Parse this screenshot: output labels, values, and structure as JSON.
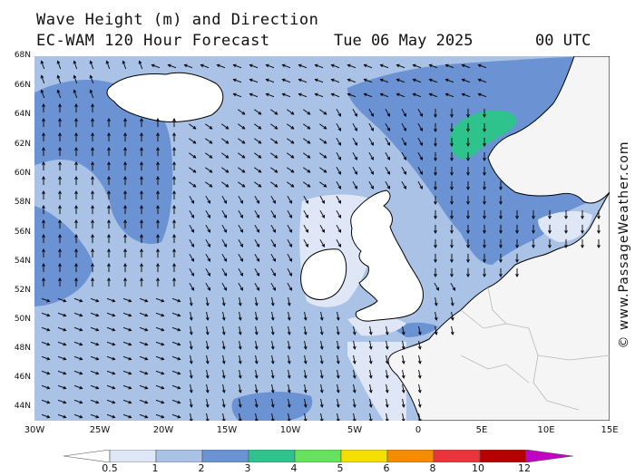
{
  "title": {
    "line1": "Wave Height (m) and Direction",
    "line2": "EC-WAM 120 Hour Forecast",
    "date": "Tue 06 May 2025",
    "time": "00 UTC"
  },
  "lat_labels": [
    "68N",
    "66N",
    "64N",
    "62N",
    "60N",
    "58N",
    "56N",
    "54N",
    "52N",
    "50N",
    "48N",
    "46N",
    "44N"
  ],
  "lon_labels": [
    "30W",
    "25W",
    "20W",
    "15W",
    "10W",
    "5W",
    "0",
    "5E",
    "10E",
    "15E"
  ],
  "watermark": "© www.PassageWeather.com",
  "colorbar": {
    "labels": [
      "0.5",
      "1",
      "2",
      "3",
      "4",
      "5",
      "6",
      "8",
      "10",
      "12"
    ],
    "colors": [
      "#ffffff",
      "#dfe7f6",
      "#a9c2e6",
      "#6b93d3",
      "#2ec28d",
      "#66e35c",
      "#f3e000",
      "#f58b00",
      "#e8343b",
      "#b40000",
      "#c400c4"
    ]
  },
  "colors": {
    "sea_low": "#dfe7f6",
    "sea_mid": "#a9c2e6",
    "sea_high": "#6b93d3",
    "sea_peak": "#2ec28d",
    "land_uk_iceland": "#ffffff",
    "land_europe": "#f5f5f5"
  }
}
